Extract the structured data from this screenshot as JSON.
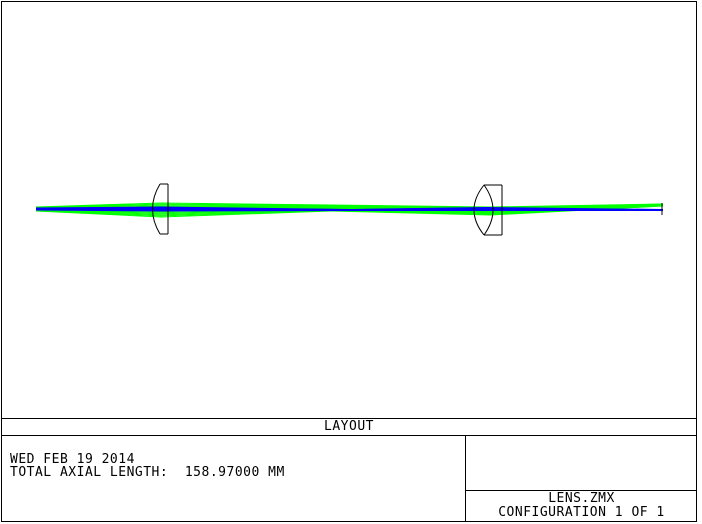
{
  "diagram": {
    "title": "LAYOUT",
    "colors": {
      "ray_green": "#00ff00",
      "ray_blue": "#0000ff",
      "lens_outline": "#000000",
      "frame": "#000000",
      "background": "#ffffff"
    },
    "elements": [
      {
        "name": "lens-1",
        "kind": "plano-convex lens"
      },
      {
        "name": "lens-2",
        "kind": "biconvex lens"
      },
      {
        "name": "image-plane",
        "kind": "image plane"
      }
    ]
  },
  "info": {
    "date": "WED FEB 19 2014",
    "axial_length": "TOTAL AXIAL LENGTH:  158.97000 MM",
    "file": "LENS.ZMX",
    "configuration": "CONFIGURATION 1 OF 1"
  }
}
